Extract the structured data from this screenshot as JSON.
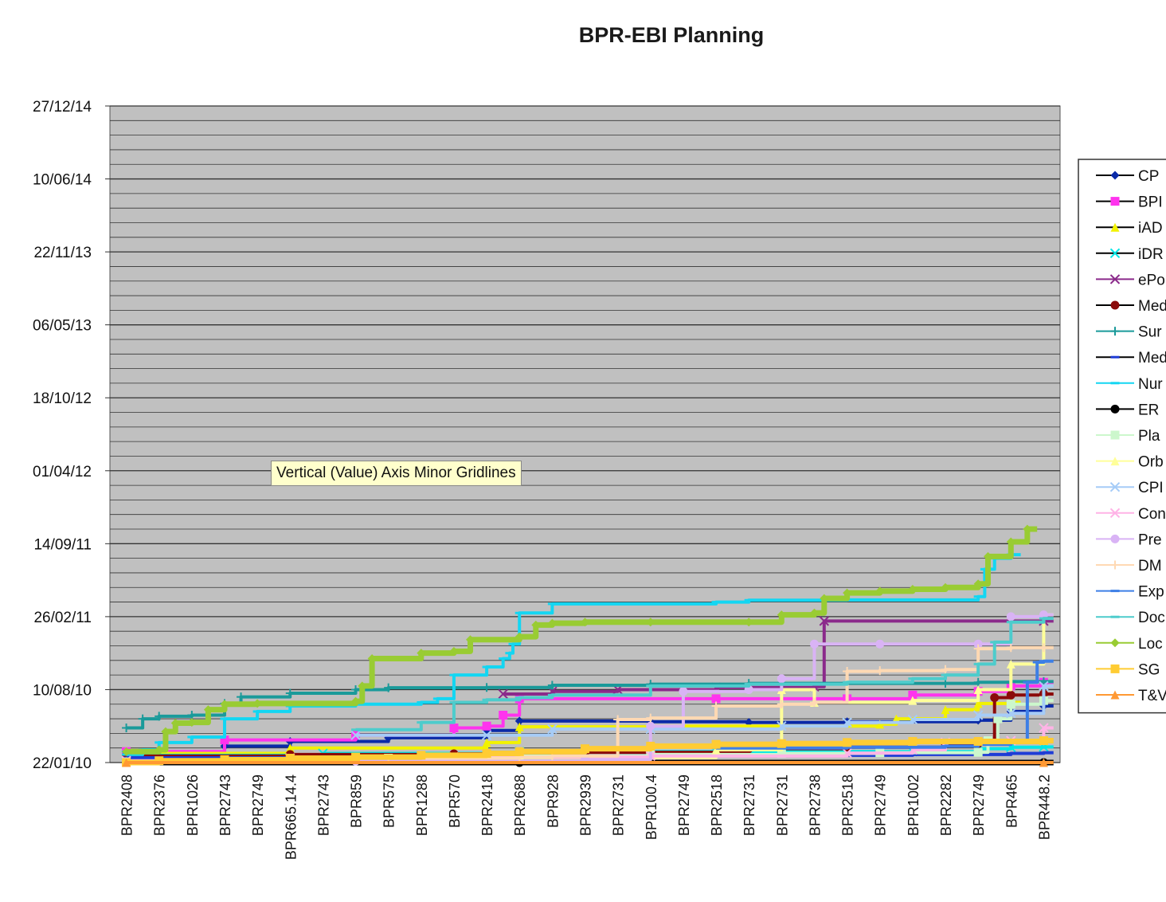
{
  "chart_data": {
    "type": "line",
    "title": "BPR-EBI Planning",
    "ytick_labels": [
      "22/01/10",
      "10/08/10",
      "26/02/11",
      "14/09/11",
      "01/04/12",
      "18/10/12",
      "06/05/13",
      "22/11/13",
      "10/06/14",
      "27/12/14"
    ],
    "ylim": [
      "22/01/10",
      "27/12/14"
    ],
    "xtick_labels": [
      "BPR2408",
      "BPR2376",
      "BPR1026",
      "BPR2743",
      "BPR2749",
      "BPR665.14.4",
      "BPR2743",
      "BPR859",
      "BPR575",
      "BPR1288",
      "BPR570",
      "BPR2418",
      "BPR2688",
      "BPR928",
      "BPR2939",
      "BPR2731",
      "BPR100.4",
      "BPR2749",
      "BPR2518",
      "BPR2731",
      "BPR2731",
      "BPR2738",
      "BPR2518",
      "BPR2749",
      "BPR1002",
      "BPR2282",
      "BPR2749",
      "BPR465",
      "BPR448.2"
    ],
    "gridlines": "major and minor horizontal",
    "plot_background": "#c0c0c0",
    "legend_position": "right (clipped)",
    "tooltip": "Vertical (Value) Axis Minor Gridlines",
    "series": [
      {
        "name": "CP",
        "color": "#0a2aa8",
        "marker": "diamond",
        "points": [
          [
            0,
            28
          ],
          [
            3,
            45
          ],
          [
            5,
            58
          ],
          [
            8,
            68
          ],
          [
            11,
            88
          ],
          [
            12,
            114
          ],
          [
            16,
            112
          ],
          [
            19,
            110
          ],
          [
            22,
            112
          ],
          [
            26,
            116
          ],
          [
            27,
            140
          ],
          [
            28,
            155
          ]
        ]
      },
      {
        "name": "BPI",
        "color": "#ff33ee",
        "marker": "square",
        "points": [
          [
            0,
            30
          ],
          [
            3,
            62
          ],
          [
            7,
            75
          ],
          [
            10,
            95
          ],
          [
            11,
            100
          ],
          [
            11.5,
            130
          ],
          [
            12,
            175
          ],
          [
            18,
            175
          ],
          [
            22,
            175
          ],
          [
            24,
            185
          ],
          [
            26,
            195
          ],
          [
            27,
            210
          ],
          [
            28,
            220
          ]
        ]
      },
      {
        "name": "iAD",
        "color": "#f2f200",
        "marker": "triangle",
        "points": [
          [
            0,
            25
          ],
          [
            5,
            40
          ],
          [
            11,
            55
          ],
          [
            12,
            98
          ],
          [
            16,
            100
          ],
          [
            23,
            105
          ],
          [
            23.5,
            120
          ],
          [
            25,
            145
          ],
          [
            26,
            162
          ],
          [
            27,
            165
          ]
        ]
      },
      {
        "name": "iDR",
        "color": "#00e6e6",
        "marker": "x",
        "points": [
          [
            0,
            20
          ],
          [
            6,
            25
          ],
          [
            12,
            30
          ],
          [
            18,
            30
          ],
          [
            24,
            30
          ],
          [
            26,
            38
          ],
          [
            27,
            42
          ],
          [
            28,
            43
          ]
        ]
      },
      {
        "name": "ePo",
        "color": "#8b2a8b",
        "marker": "x",
        "points": [
          [
            11.5,
            188
          ],
          [
            13,
            195
          ],
          [
            15,
            200
          ],
          [
            18,
            206
          ],
          [
            21,
            208
          ],
          [
            21.3,
            388
          ],
          [
            28,
            388
          ]
        ]
      },
      {
        "name": "Med",
        "color": "#8b0a0a",
        "marker": "circle",
        "points": [
          [
            0,
            18
          ],
          [
            5,
            22
          ],
          [
            10,
            24
          ],
          [
            14,
            28
          ],
          [
            19,
            38
          ],
          [
            22,
            42
          ],
          [
            25,
            52
          ],
          [
            26,
            52
          ],
          [
            26.5,
            178
          ],
          [
            27,
            185
          ],
          [
            28,
            188
          ]
        ]
      },
      {
        "name": "Sur",
        "color": "#1a9a9a",
        "marker": "plus",
        "points": [
          [
            0,
            95
          ],
          [
            0.5,
            120
          ],
          [
            1,
            127
          ],
          [
            2,
            130
          ],
          [
            3,
            162
          ],
          [
            3.5,
            180
          ],
          [
            5,
            190
          ],
          [
            7,
            200
          ],
          [
            8,
            205
          ],
          [
            11,
            206
          ],
          [
            13,
            212
          ],
          [
            16,
            215
          ],
          [
            19,
            217
          ],
          [
            25,
            217
          ],
          [
            26,
            220
          ],
          [
            27,
            222
          ],
          [
            28,
            222
          ]
        ]
      },
      {
        "name": "Med",
        "color": "#1e3cd6",
        "marker": "dash",
        "points": [
          [
            0,
            13
          ],
          [
            6,
            15
          ],
          [
            12,
            18
          ],
          [
            18,
            20
          ],
          [
            24,
            22
          ],
          [
            27,
            25
          ],
          [
            28,
            27
          ]
        ]
      },
      {
        "name": "Nur",
        "color": "#13d6f2",
        "marker": "dash",
        "points": [
          [
            0,
            22
          ],
          [
            0.5,
            35
          ],
          [
            1,
            55
          ],
          [
            2,
            70
          ],
          [
            3,
            120
          ],
          [
            4,
            140
          ],
          [
            5,
            155
          ],
          [
            7,
            160
          ],
          [
            9,
            165
          ],
          [
            9.5,
            175
          ],
          [
            10,
            240
          ],
          [
            11,
            262
          ],
          [
            11.5,
            285
          ],
          [
            11.7,
            300
          ],
          [
            11.8,
            325
          ],
          [
            12,
            410
          ],
          [
            13,
            435
          ],
          [
            18,
            440
          ],
          [
            19,
            445
          ],
          [
            21,
            445
          ],
          [
            22,
            446
          ],
          [
            26,
            455
          ],
          [
            26.2,
            530
          ],
          [
            26.5,
            560
          ],
          [
            27,
            570
          ]
        ]
      },
      {
        "name": "ER",
        "color": "#000000",
        "marker": "circle",
        "points": [
          [
            0,
            0
          ],
          [
            12,
            0
          ],
          [
            28,
            0
          ]
        ]
      },
      {
        "name": "Pla",
        "color": "#ccf7cc",
        "marker": "square",
        "points": [
          [
            0,
            2
          ],
          [
            8,
            12
          ],
          [
            12,
            18
          ],
          [
            16,
            22
          ],
          [
            20,
            25
          ],
          [
            23,
            27
          ],
          [
            26,
            28
          ],
          [
            26.3,
            60
          ],
          [
            26.6,
            120
          ],
          [
            27,
            160
          ],
          [
            28,
            170
          ]
        ]
      },
      {
        "name": "Orb",
        "color": "#ffff99",
        "marker": "triangle",
        "points": [
          [
            0,
            3
          ],
          [
            6,
            8
          ],
          [
            12,
            14
          ],
          [
            18,
            35
          ],
          [
            20,
            200
          ],
          [
            21,
            165
          ],
          [
            24,
            170
          ],
          [
            26,
            200
          ],
          [
            27,
            270
          ],
          [
            28,
            405
          ]
        ]
      },
      {
        "name": "CPI",
        "color": "#a6ccf7",
        "marker": "x",
        "points": [
          [
            7,
            75
          ],
          [
            11,
            75
          ],
          [
            13,
            92
          ],
          [
            16,
            92
          ],
          [
            20,
            100
          ],
          [
            22,
            110
          ],
          [
            24,
            118
          ],
          [
            26,
            130
          ],
          [
            27,
            135
          ],
          [
            28,
            210
          ]
        ]
      },
      {
        "name": "Con",
        "color": "#ffb3e6",
        "marker": "x",
        "points": [
          [
            0,
            5
          ],
          [
            5,
            12
          ],
          [
            10,
            15
          ],
          [
            16,
            18
          ],
          [
            22,
            26
          ],
          [
            24,
            35
          ],
          [
            25,
            55
          ],
          [
            27,
            60
          ],
          [
            28,
            95
          ]
        ]
      },
      {
        "name": "Pre",
        "color": "#d9b3f5",
        "marker": "circle",
        "points": [
          [
            0,
            0
          ],
          [
            7,
            4
          ],
          [
            14,
            8
          ],
          [
            16,
            100
          ],
          [
            17,
            195
          ],
          [
            19,
            200
          ],
          [
            20,
            230
          ],
          [
            21,
            325
          ],
          [
            23,
            325
          ],
          [
            26,
            325
          ],
          [
            27,
            400
          ],
          [
            28,
            405
          ]
        ]
      },
      {
        "name": "DM",
        "color": "#ffd9b3",
        "marker": "plus",
        "points": [
          [
            8,
            12
          ],
          [
            12,
            15
          ],
          [
            13,
            18
          ],
          [
            15,
            118
          ],
          [
            16,
            122
          ],
          [
            18,
            155
          ],
          [
            20,
            160
          ],
          [
            21,
            165
          ],
          [
            22,
            250
          ],
          [
            23,
            252
          ],
          [
            25,
            255
          ],
          [
            26,
            312
          ],
          [
            27,
            315
          ],
          [
            28,
            315
          ]
        ]
      },
      {
        "name": "Exp",
        "color": "#3d7fe6",
        "marker": "dash",
        "points": [
          [
            18,
            40
          ],
          [
            22,
            42
          ],
          [
            25,
            45
          ],
          [
            26,
            50
          ],
          [
            27,
            60
          ],
          [
            27.5,
            220
          ],
          [
            27.8,
            275
          ],
          [
            28,
            278
          ]
        ]
      },
      {
        "name": "Doc",
        "color": "#4dcccc",
        "marker": "dash",
        "points": [
          [
            7,
            90
          ],
          [
            9,
            110
          ],
          [
            10,
            165
          ],
          [
            11,
            172
          ],
          [
            12,
            178
          ],
          [
            13,
            185
          ],
          [
            16,
            210
          ],
          [
            19,
            215
          ],
          [
            22,
            220
          ],
          [
            24,
            230
          ],
          [
            25,
            240
          ],
          [
            26,
            270
          ],
          [
            26.5,
            330
          ],
          [
            27,
            385
          ],
          [
            28,
            395
          ]
        ]
      },
      {
        "name": "Loc",
        "color": "#99cc33",
        "marker": "diamond",
        "points": [
          [
            0,
            30
          ],
          [
            1,
            35
          ],
          [
            1.2,
            85
          ],
          [
            1.5,
            108
          ],
          [
            2,
            110
          ],
          [
            2.5,
            145
          ],
          [
            3,
            160
          ],
          [
            4,
            162
          ],
          [
            7,
            168
          ],
          [
            7.2,
            210
          ],
          [
            7.5,
            285
          ],
          [
            9,
            300
          ],
          [
            10,
            305
          ],
          [
            10.5,
            337
          ],
          [
            12,
            345
          ],
          [
            12.5,
            377
          ],
          [
            13,
            382
          ],
          [
            14,
            385
          ],
          [
            16,
            385
          ],
          [
            19,
            385
          ],
          [
            20,
            405
          ],
          [
            21,
            410
          ],
          [
            21.3,
            450
          ],
          [
            22,
            465
          ],
          [
            23,
            470
          ],
          [
            24,
            475
          ],
          [
            25,
            480
          ],
          [
            26,
            490
          ],
          [
            26.3,
            565
          ],
          [
            27,
            605
          ],
          [
            27.5,
            640
          ]
        ]
      },
      {
        "name": "SG",
        "color": "#ffcc33",
        "marker": "square",
        "points": [
          [
            0,
            0
          ],
          [
            1,
            5
          ],
          [
            3,
            8
          ],
          [
            5,
            12
          ],
          [
            7,
            15
          ],
          [
            9,
            20
          ],
          [
            11,
            25
          ],
          [
            12,
            30
          ],
          [
            14,
            38
          ],
          [
            16,
            45
          ],
          [
            18,
            50
          ],
          [
            20,
            52
          ],
          [
            22,
            55
          ],
          [
            24,
            58
          ],
          [
            26,
            58
          ],
          [
            28,
            60
          ]
        ]
      },
      {
        "name": "T&V",
        "color": "#ff9933",
        "marker": "triangle",
        "points": [
          [
            0,
            0
          ],
          [
            28,
            0
          ]
        ]
      }
    ]
  }
}
